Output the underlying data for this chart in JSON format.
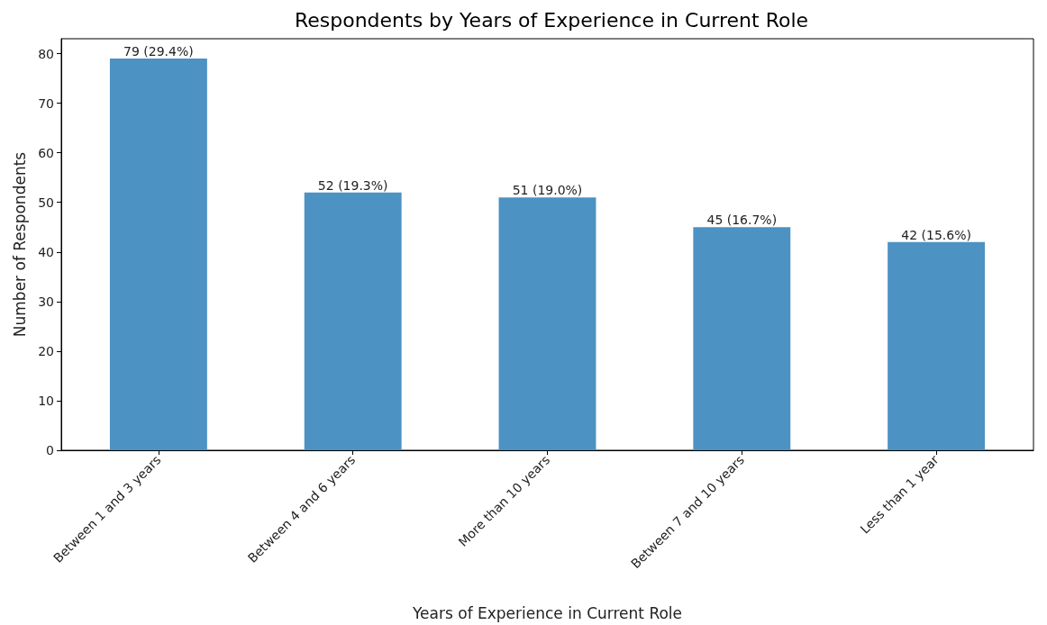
{
  "chart_data": {
    "type": "bar",
    "title": "Respondents by Years of Experience in Current Role",
    "xlabel": "Years of Experience in Current Role",
    "ylabel": "Number of Respondents",
    "categories": [
      "Between 1 and 3 years",
      "Between 4 and 6 years",
      "More than 10 years",
      "Between 7 and 10 years",
      "Less than 1 year"
    ],
    "values": [
      79,
      52,
      51,
      45,
      42
    ],
    "value_labels": [
      "79 (29.4%)",
      "52 (19.3%)",
      "51 (19.0%)",
      "45 (16.7%)",
      "42 (15.6%)"
    ],
    "color": "#4c92c3",
    "ylim": [
      0,
      83
    ],
    "yticks": [
      0,
      10,
      20,
      30,
      40,
      50,
      60,
      70,
      80
    ],
    "grid": false
  }
}
